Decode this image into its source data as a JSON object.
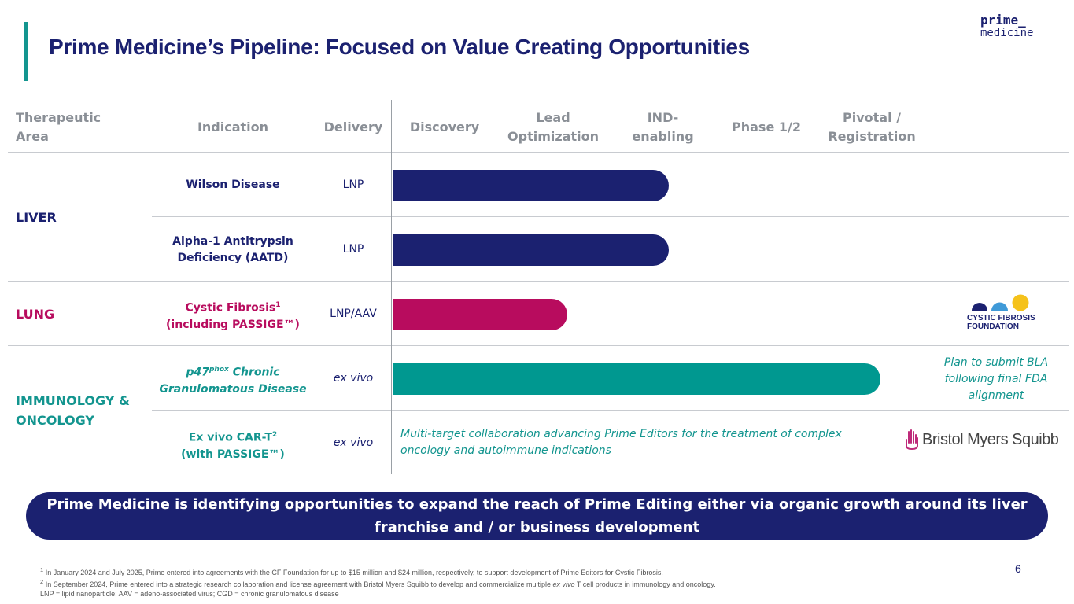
{
  "title": "Prime Medicine’s Pipeline: Focused on Value Creating Opportunities",
  "logo": {
    "line1": "prime_",
    "line2": "medicine"
  },
  "headers": {
    "area": "Therapeutic Area",
    "indication": "Indication",
    "delivery": "Delivery",
    "discovery": "Discovery",
    "lead": "Lead Optimization",
    "ind_enabling": "IND-enabling",
    "phase": "Phase 1/2",
    "pivotal": "Pivotal / Registration"
  },
  "areas": {
    "liver": "LIVER",
    "lung": "LUNG",
    "immunology": "IMMUNOLOGY & ONCOLOGY"
  },
  "programs": [
    {
      "indication": "Wilson Disease",
      "delivery": "LNP",
      "stage": "IND-enabling"
    },
    {
      "indication": "Alpha-1 Antitrypsin Deficiency (AATD)",
      "delivery": "LNP",
      "stage": "IND-enabling"
    },
    {
      "indication_line1": "Cystic Fibrosis",
      "indication_sup": "1",
      "indication_line2": "(including PASSIGE™)",
      "delivery": "LNP/AAV",
      "stage": "Lead Optimization"
    },
    {
      "indication_prefix": "p47",
      "indication_sup": "phox",
      "indication_line1": " Chronic",
      "indication_line2": "Granulomatous Disease",
      "delivery": "ex vivo",
      "stage": "Pivotal / Registration"
    },
    {
      "indication_line1": "Ex vivo CAR-T",
      "indication_sup": "2",
      "indication_line2": "(with PASSIGE™)",
      "delivery": "ex vivo"
    }
  ],
  "notes": {
    "bla": "Plan to submit BLA following final FDA alignment",
    "bms_collab": "Multi-target collaboration advancing Prime Editors for the treatment of complex oncology and autoimmune indications"
  },
  "partners": {
    "cff": "CYSTIC FIBROSIS FOUNDATION",
    "bms": "Bristol Myers Squibb"
  },
  "banner": "Prime Medicine is identifying opportunities to expand the reach of Prime Editing either via organic growth around its liver franchise and / or business development",
  "footnotes": {
    "f1_sup": "1",
    "f1": "In January 2024 and July 2025, Prime entered into agreements with the CF Foundation for up to $15 million and $24 million, respectively, to support development of Prime Editors for Cystic Fibrosis.",
    "f2_sup": "2",
    "f2_a": "In September 2024, Prime entered into a strategic research collaboration and license agreement with Bristol Myers Squibb to develop and commercialize multiple ",
    "f2_b": "ex vivo",
    "f2_c": " T cell products in immunology and oncology.",
    "f3": "LNP = lipid nanoparticle; AAV = adeno-associated virus; CGD = chronic granulomatous disease"
  },
  "page_number": "6",
  "colors": {
    "navy": "#1b2170",
    "magenta": "#b80c5e",
    "teal": "#13958f",
    "gray": "#8a8f96"
  }
}
